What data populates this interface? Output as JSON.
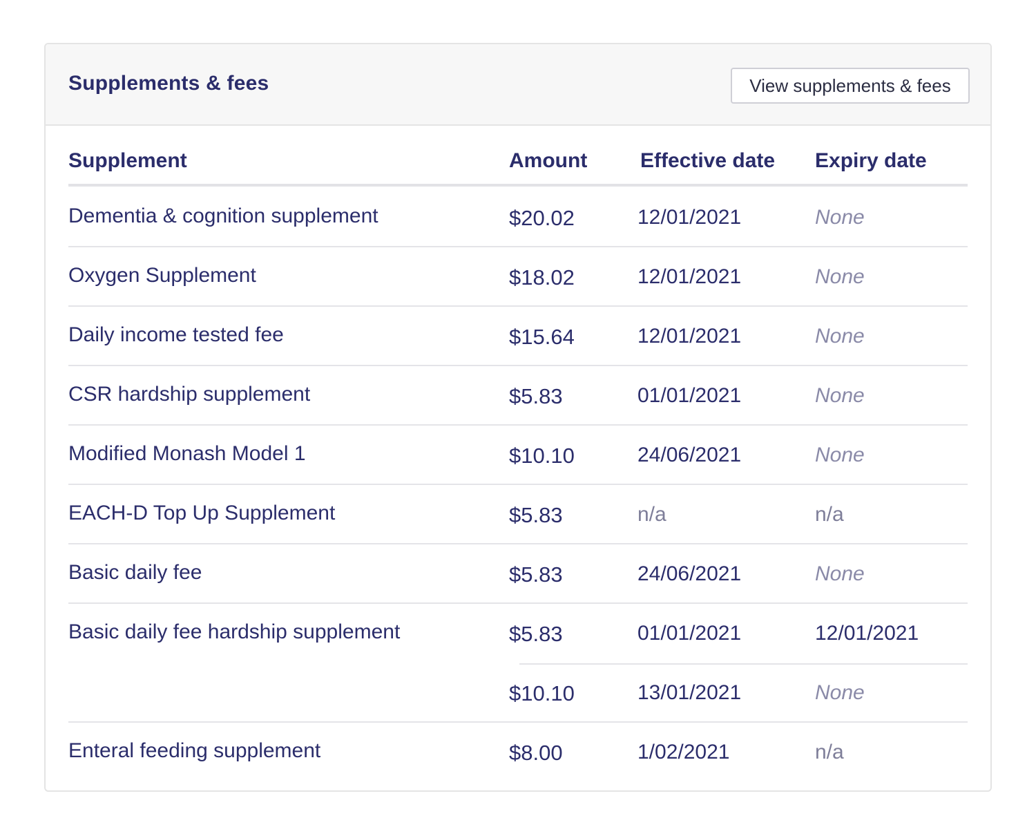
{
  "card": {
    "title": "Supplements & fees",
    "view_button": "View supplements & fees"
  },
  "table": {
    "headers": {
      "supplement": "Supplement",
      "amount": "Amount",
      "effective": "Effective date",
      "expiry": "Expiry date"
    },
    "rows": [
      {
        "name": "Dementia & cognition supplement",
        "entries": [
          {
            "amount": "$20.02",
            "effective": "12/01/2021",
            "expiry": "None"
          }
        ]
      },
      {
        "name": "Oxygen Supplement",
        "entries": [
          {
            "amount": "$18.02",
            "effective": "12/01/2021",
            "expiry": "None"
          }
        ]
      },
      {
        "name": "Daily income tested fee",
        "entries": [
          {
            "amount": "$15.64",
            "effective": "12/01/2021",
            "expiry": "None"
          }
        ]
      },
      {
        "name": "CSR hardship supplement",
        "entries": [
          {
            "amount": "$5.83",
            "effective": "01/01/2021",
            "expiry": "None"
          }
        ]
      },
      {
        "name": "Modified Monash Model 1",
        "entries": [
          {
            "amount": "$10.10",
            "effective": "24/06/2021",
            "expiry": "None"
          }
        ]
      },
      {
        "name": "EACH-D Top Up Supplement",
        "entries": [
          {
            "amount": "$5.83",
            "effective": "n/a",
            "expiry": "n/a"
          }
        ]
      },
      {
        "name": "Basic daily fee",
        "entries": [
          {
            "amount": "$5.83",
            "effective": "24/06/2021",
            "expiry": "None"
          }
        ]
      },
      {
        "name": "Basic daily fee hardship supplement",
        "entries": [
          {
            "amount": "$5.83",
            "effective": "01/01/2021",
            "expiry": "12/01/2021"
          },
          {
            "amount": "$10.10",
            "effective": "13/01/2021",
            "expiry": "None"
          }
        ]
      },
      {
        "name": "Enteral feeding supplement",
        "entries": [
          {
            "amount": "$8.00",
            "effective": "1/02/2021",
            "expiry": "n/a"
          }
        ]
      }
    ]
  }
}
